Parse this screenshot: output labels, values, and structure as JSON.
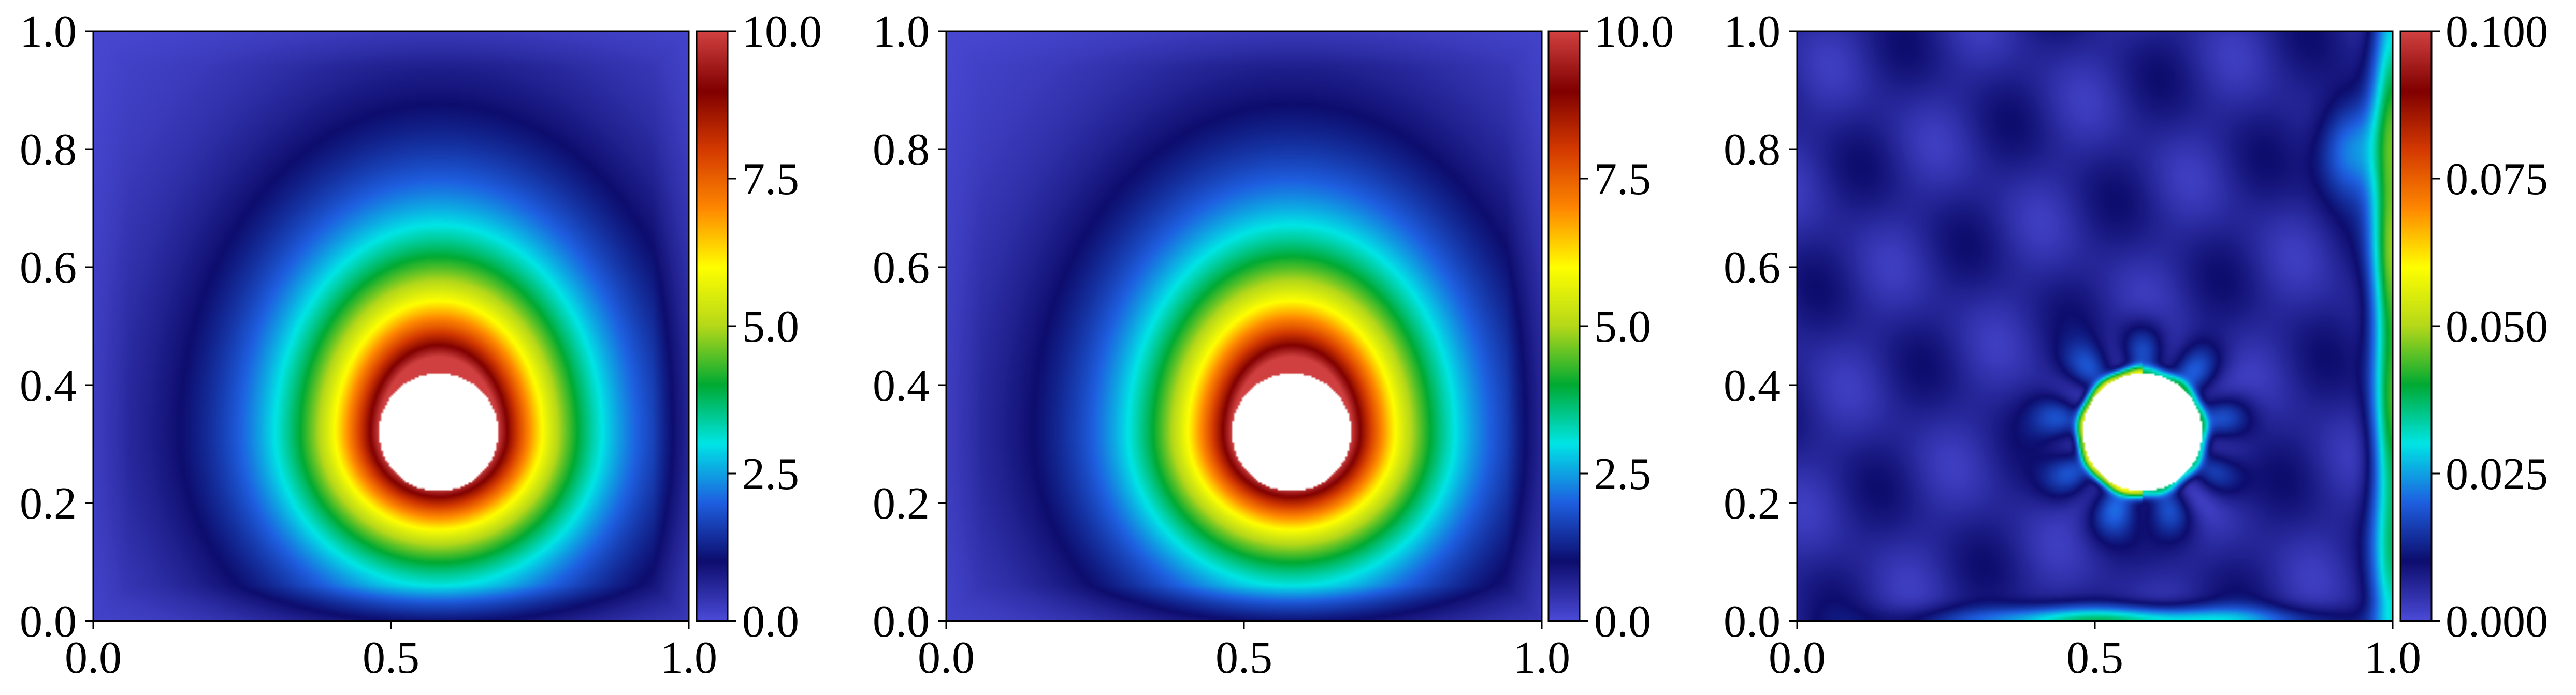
{
  "chart_data": [
    {
      "type": "heatmap",
      "title": "",
      "xlabel": "",
      "ylabel": "",
      "xlim": [
        0.0,
        1.0
      ],
      "ylim": [
        0.0,
        1.0
      ],
      "x_ticks": [
        "0.0",
        "0.5",
        "1.0"
      ],
      "y_ticks": [
        "0.0",
        "0.2",
        "0.4",
        "0.6",
        "0.8",
        "1.0"
      ],
      "colorbar": {
        "range": [
          0.0,
          10.0
        ],
        "ticks": [
          "0.0",
          "2.5",
          "5.0",
          "7.5",
          "10.0"
        ]
      },
      "hole": {
        "center": [
          0.58,
          0.32
        ],
        "radius": 0.1
      },
      "field": {
        "kind": "ring",
        "peak_value": 10.0,
        "peak_at_hole_edge": true,
        "background_value": 0.7
      },
      "colormap": "turbo"
    },
    {
      "type": "heatmap",
      "title": "",
      "xlabel": "",
      "ylabel": "",
      "xlim": [
        0.0,
        1.0
      ],
      "ylim": [
        0.0,
        1.0
      ],
      "x_ticks": [
        "0.0",
        "0.5",
        "1.0"
      ],
      "y_ticks": [
        "0.0",
        "0.2",
        "0.4",
        "0.6",
        "0.8",
        "1.0"
      ],
      "colorbar": {
        "range": [
          0.0,
          10.0
        ],
        "ticks": [
          "0.0",
          "2.5",
          "5.0",
          "7.5",
          "10.0"
        ]
      },
      "hole": {
        "center": [
          0.58,
          0.32
        ],
        "radius": 0.1
      },
      "field": {
        "kind": "ring",
        "peak_value": 10.0,
        "peak_at_hole_edge": true,
        "background_value": 0.7
      },
      "colormap": "turbo"
    },
    {
      "type": "heatmap",
      "title": "",
      "xlabel": "",
      "ylabel": "",
      "xlim": [
        0.0,
        1.0
      ],
      "ylim": [
        0.0,
        1.0
      ],
      "x_ticks": [
        "0.0",
        "0.5",
        "1.0"
      ],
      "y_ticks": [
        "0.0",
        "0.2",
        "0.4",
        "0.6",
        "0.8",
        "1.0"
      ],
      "colorbar": {
        "range": [
          0.0,
          0.1
        ],
        "ticks": [
          "0.000",
          "0.025",
          "0.050",
          "0.075",
          "0.100"
        ]
      },
      "hole": {
        "center": [
          0.58,
          0.32
        ],
        "radius": 0.1
      },
      "field": {
        "kind": "error",
        "background_value": 0.003,
        "features": [
          {
            "name": "hole-rim",
            "value": 0.045
          },
          {
            "name": "right-edge-band",
            "value": 0.04
          },
          {
            "name": "bottom-edge-band",
            "value": 0.03
          }
        ]
      },
      "colormap": "turbo"
    }
  ],
  "colors": {
    "background": "#ffffff",
    "axis": "#000000",
    "colormap_stops": [
      "#4a4ad6",
      "#0d0d6e",
      "#1e5fe0",
      "#00e5e5",
      "#00aa33",
      "#b5d81a",
      "#ffff00",
      "#ff8800",
      "#d43a00",
      "#800000",
      "#d04040"
    ]
  }
}
